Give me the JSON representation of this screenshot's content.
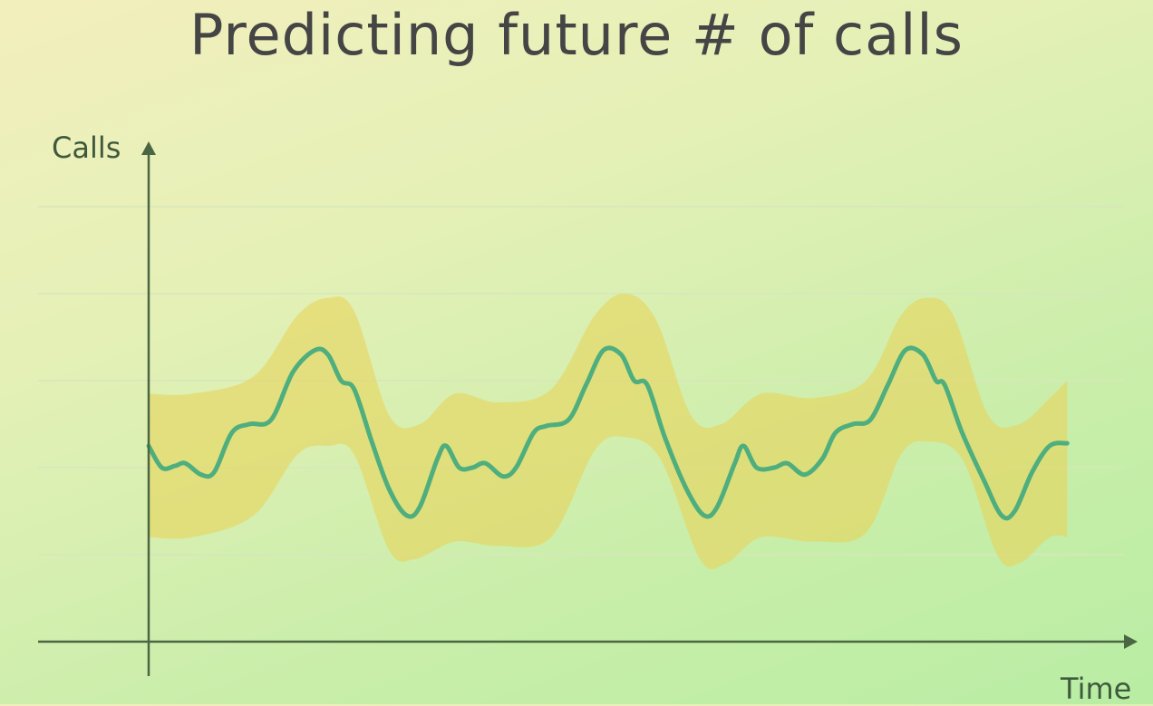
{
  "title": "Predicting future # of calls",
  "chart_data": {
    "type": "area",
    "title": "Predicting future # of calls",
    "xlabel": "Time",
    "ylabel": "Calls",
    "ylim": [
      0,
      5
    ],
    "xlim": [
      0,
      10.6
    ],
    "grid": true,
    "legend": "none",
    "series": [
      {
        "values": [
          [
            0.0,
            2.25
          ],
          [
            0.15,
            2.0
          ],
          [
            0.3,
            2.02
          ],
          [
            0.42,
            2.05
          ],
          [
            0.6,
            1.92
          ],
          [
            0.75,
            1.95
          ],
          [
            0.95,
            2.4
          ],
          [
            1.15,
            2.5
          ],
          [
            1.4,
            2.55
          ],
          [
            1.65,
            3.1
          ],
          [
            1.9,
            3.35
          ],
          [
            2.05,
            3.3
          ],
          [
            2.2,
            3.0
          ],
          [
            2.35,
            2.9
          ],
          [
            2.55,
            2.3
          ],
          [
            2.75,
            1.75
          ],
          [
            2.95,
            1.45
          ],
          [
            3.1,
            1.55
          ],
          [
            3.3,
            2.1
          ],
          [
            3.4,
            2.25
          ],
          [
            3.55,
            2.0
          ],
          [
            3.7,
            2.0
          ],
          [
            3.85,
            2.05
          ],
          [
            4.05,
            1.9
          ],
          [
            4.2,
            2.0
          ],
          [
            4.4,
            2.4
          ],
          [
            4.55,
            2.48
          ],
          [
            4.8,
            2.55
          ],
          [
            5.0,
            2.95
          ],
          [
            5.2,
            3.35
          ],
          [
            5.4,
            3.3
          ],
          [
            5.55,
            3.0
          ],
          [
            5.7,
            2.95
          ],
          [
            5.9,
            2.35
          ],
          [
            6.15,
            1.75
          ],
          [
            6.35,
            1.45
          ],
          [
            6.5,
            1.55
          ],
          [
            6.7,
            2.05
          ],
          [
            6.8,
            2.25
          ],
          [
            6.95,
            2.0
          ],
          [
            7.15,
            2.0
          ],
          [
            7.3,
            2.05
          ],
          [
            7.5,
            1.92
          ],
          [
            7.7,
            2.1
          ],
          [
            7.85,
            2.4
          ],
          [
            8.05,
            2.5
          ],
          [
            8.25,
            2.55
          ],
          [
            8.45,
            2.95
          ],
          [
            8.65,
            3.35
          ],
          [
            8.85,
            3.3
          ],
          [
            9.0,
            3.0
          ],
          [
            9.1,
            2.95
          ],
          [
            9.3,
            2.4
          ],
          [
            9.55,
            1.85
          ],
          [
            9.75,
            1.45
          ],
          [
            9.9,
            1.5
          ],
          [
            10.1,
            1.95
          ],
          [
            10.3,
            2.25
          ],
          [
            10.5,
            2.28
          ]
        ],
        "upper": [
          [
            0.0,
            2.85
          ],
          [
            0.5,
            2.85
          ],
          [
            1.2,
            3.05
          ],
          [
            1.7,
            3.75
          ],
          [
            2.05,
            3.95
          ],
          [
            2.35,
            3.8
          ],
          [
            2.75,
            2.6
          ],
          [
            3.1,
            2.5
          ],
          [
            3.5,
            2.85
          ],
          [
            4.0,
            2.75
          ],
          [
            4.6,
            2.9
          ],
          [
            5.1,
            3.75
          ],
          [
            5.45,
            4.0
          ],
          [
            5.8,
            3.7
          ],
          [
            6.2,
            2.6
          ],
          [
            6.55,
            2.5
          ],
          [
            7.0,
            2.85
          ],
          [
            7.6,
            2.8
          ],
          [
            8.2,
            3.0
          ],
          [
            8.6,
            3.75
          ],
          [
            8.9,
            3.95
          ],
          [
            9.2,
            3.75
          ],
          [
            9.6,
            2.6
          ],
          [
            9.95,
            2.5
          ],
          [
            10.3,
            2.8
          ],
          [
            10.5,
            3.0
          ]
        ],
        "lower": [
          [
            0.0,
            1.2
          ],
          [
            0.5,
            1.2
          ],
          [
            1.2,
            1.45
          ],
          [
            1.7,
            2.15
          ],
          [
            2.05,
            2.25
          ],
          [
            2.35,
            2.15
          ],
          [
            2.75,
            1.05
          ],
          [
            3.05,
            0.95
          ],
          [
            3.5,
            1.15
          ],
          [
            4.0,
            1.1
          ],
          [
            4.6,
            1.2
          ],
          [
            5.1,
            2.2
          ],
          [
            5.45,
            2.35
          ],
          [
            5.85,
            2.1
          ],
          [
            6.3,
            0.95
          ],
          [
            6.6,
            0.9
          ],
          [
            7.0,
            1.2
          ],
          [
            7.6,
            1.15
          ],
          [
            8.2,
            1.25
          ],
          [
            8.6,
            2.15
          ],
          [
            8.9,
            2.3
          ],
          [
            9.3,
            2.1
          ],
          [
            9.7,
            1.0
          ],
          [
            9.95,
            0.9
          ],
          [
            10.3,
            1.2
          ],
          [
            10.5,
            1.2
          ]
        ]
      }
    ],
    "colors": {
      "line": "#4fae7e",
      "band": "#e8d35a",
      "axis": "#4a6642",
      "grid": "#d7e6bc",
      "label": "#3e5a3c"
    }
  }
}
